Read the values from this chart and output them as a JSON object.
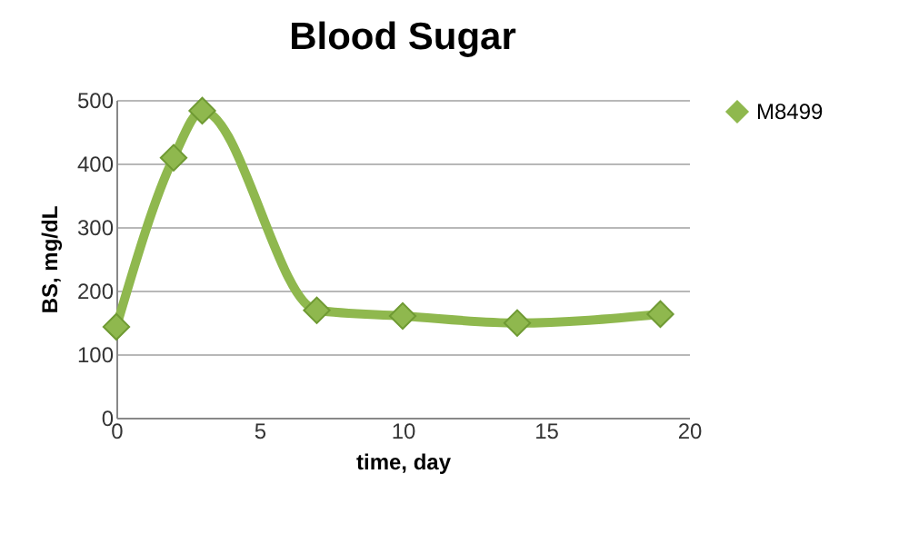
{
  "chart_data": {
    "type": "line",
    "title": "Blood Sugar",
    "xlabel": "time, day",
    "ylabel": "BS, mg/dL",
    "x": [
      0,
      2,
      3,
      7,
      10,
      14,
      19
    ],
    "series": [
      {
        "name": "M8499",
        "color": "#8fb84e",
        "values": [
          143,
          409,
          483,
          169,
          160,
          149,
          163
        ]
      }
    ],
    "xlim": [
      0,
      20
    ],
    "xticks": [
      0,
      5,
      10,
      15,
      20
    ],
    "ylim": [
      0,
      500
    ],
    "yticks": [
      0,
      100,
      200,
      300,
      400,
      500
    ],
    "grid": "y",
    "legend": "right",
    "marker": "diamond",
    "line_style": "solid"
  }
}
